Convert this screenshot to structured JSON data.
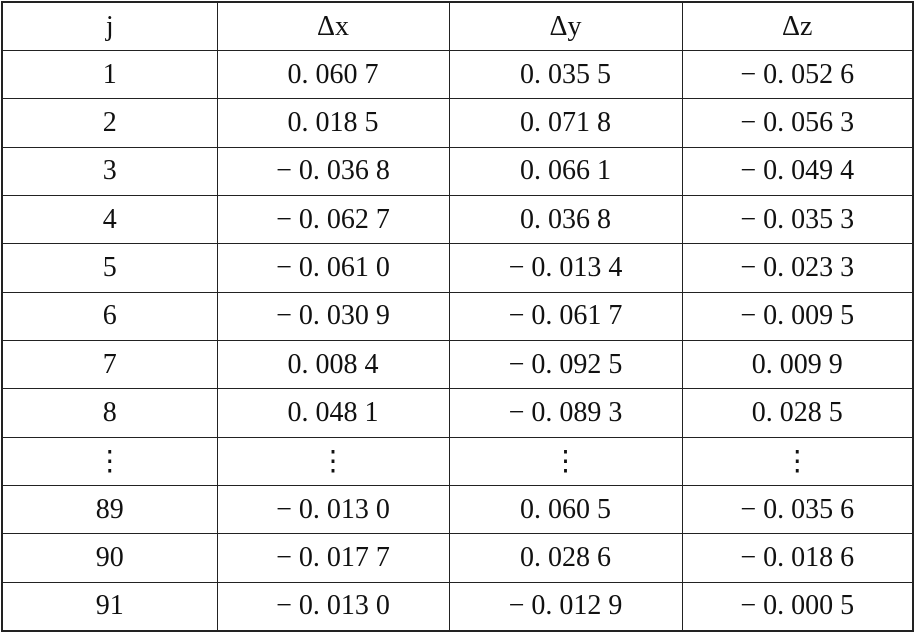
{
  "table": {
    "header": [
      "j",
      "Δx",
      "Δy",
      "Δz"
    ],
    "rows": [
      [
        "1",
        "0. 060 7",
        "0. 035 5",
        "− 0. 052 6"
      ],
      [
        "2",
        "0. 018 5",
        "0. 071 8",
        "− 0. 056 3"
      ],
      [
        "3",
        "− 0. 036 8",
        "0. 066 1",
        "− 0. 049 4"
      ],
      [
        "4",
        "− 0. 062 7",
        "0. 036 8",
        "− 0. 035 3"
      ],
      [
        "5",
        "− 0. 061 0",
        "− 0. 013 4",
        "− 0. 023 3"
      ],
      [
        "6",
        "− 0. 030 9",
        "− 0. 061 7",
        "− 0. 009 5"
      ],
      [
        "7",
        "0. 008 4",
        "− 0. 092 5",
        "0. 009 9"
      ],
      [
        "8",
        "0. 048 1",
        "− 0. 089 3",
        "0. 028 5"
      ],
      [
        "⋮",
        "⋮",
        "⋮",
        "⋮"
      ],
      [
        "89",
        "− 0. 013 0",
        "0. 060 5",
        "− 0. 035 6"
      ],
      [
        "90",
        "− 0. 017 7",
        "0. 028 6",
        "− 0. 018 6"
      ],
      [
        "91",
        "− 0. 013 0",
        "− 0. 012 9",
        "− 0. 000 5"
      ]
    ]
  }
}
